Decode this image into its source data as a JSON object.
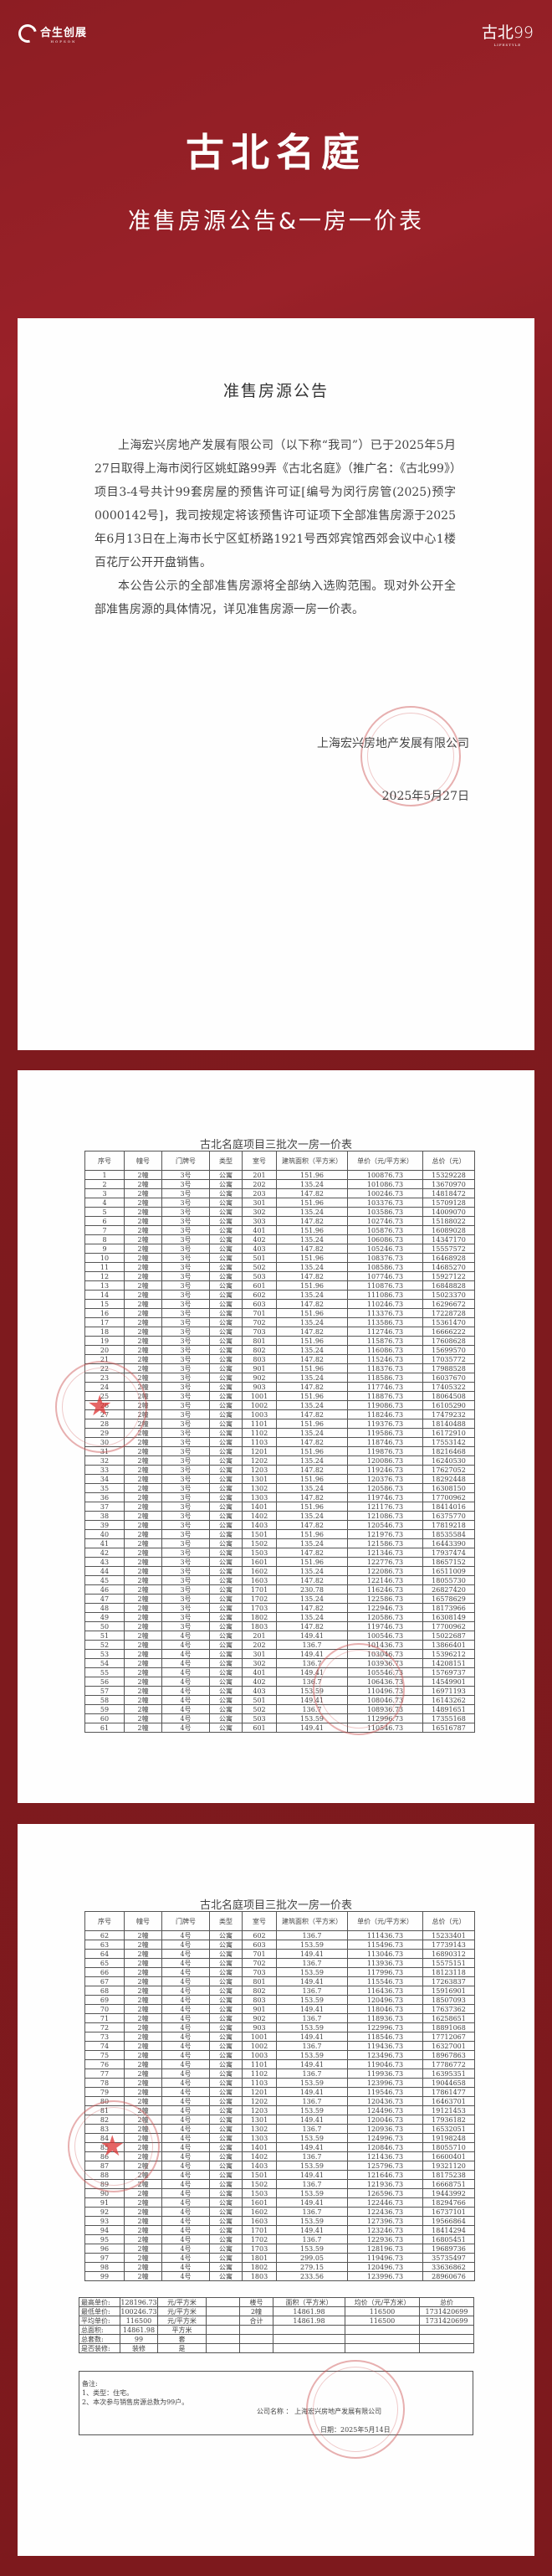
{
  "header": {
    "brand_left": "合生创展",
    "brand_left_en": "HOPSON",
    "brand_right": "古北99",
    "brand_right_en": "LIFESTYLE",
    "title": "古北名庭",
    "subtitle": "准售房源公告&一房一价表"
  },
  "colors": {
    "background": "#7f1a1e",
    "card": "#fefefe",
    "stamp": "#cd5050"
  },
  "notice": {
    "title": "准售房源公告",
    "paragraphs": [
      "上海宏兴房地产发展有限公司（以下称“我司”）已于2025年5月27日取得上海市闵行区姚虹路99弄《古北名庭》（推广名：《古北99》）项目3-4号共计99套房屋的预售许可证[编号为闵行房管(2025)预字0000142号]，我司按规定将该预售许可证项下全部准售房源于2025年6月13日在上海市长宁区虹桥路1921号西郊宾馆西郊会议中心1楼百花厅公开开盘销售。",
      "本公告公示的全部准售房源将全部纳入选购范围。现对外公开全部准售房源的具体情况，详见准售房源一房一价表。"
    ],
    "company": "上海宏兴房地产发展有限公司",
    "date": "2025年5月27日"
  },
  "price_table": {
    "title": "古北名庭项目三批次一房一价表",
    "columns": [
      "序号",
      "幢号",
      "门牌号",
      "类型",
      "室号",
      "建筑面积（平方米）",
      "单价（元/平方米）",
      "总价（元）"
    ],
    "rows": [
      [
        1,
        "2幢",
        "3号",
        "公寓",
        "201",
        "151.96",
        "100876.73",
        "15329228"
      ],
      [
        2,
        "2幢",
        "3号",
        "公寓",
        "202",
        "135.24",
        "101086.73",
        "13670970"
      ],
      [
        3,
        "2幢",
        "3号",
        "公寓",
        "203",
        "147.82",
        "100246.73",
        "14818472"
      ],
      [
        4,
        "2幢",
        "3号",
        "公寓",
        "301",
        "151.96",
        "103376.73",
        "15709128"
      ],
      [
        5,
        "2幢",
        "3号",
        "公寓",
        "302",
        "135.24",
        "103586.73",
        "14009070"
      ],
      [
        6,
        "2幢",
        "3号",
        "公寓",
        "303",
        "147.82",
        "102746.73",
        "15188022"
      ],
      [
        7,
        "2幢",
        "3号",
        "公寓",
        "401",
        "151.96",
        "105876.73",
        "16089028"
      ],
      [
        8,
        "2幢",
        "3号",
        "公寓",
        "402",
        "135.24",
        "106086.73",
        "14347170"
      ],
      [
        9,
        "2幢",
        "3号",
        "公寓",
        "403",
        "147.82",
        "105246.73",
        "15557572"
      ],
      [
        10,
        "2幢",
        "3号",
        "公寓",
        "501",
        "151.96",
        "108376.73",
        "16468928"
      ],
      [
        11,
        "2幢",
        "3号",
        "公寓",
        "502",
        "135.24",
        "108586.73",
        "14685270"
      ],
      [
        12,
        "2幢",
        "3号",
        "公寓",
        "503",
        "147.82",
        "107746.73",
        "15927122"
      ],
      [
        13,
        "2幢",
        "3号",
        "公寓",
        "601",
        "151.96",
        "110876.73",
        "16848828"
      ],
      [
        14,
        "2幢",
        "3号",
        "公寓",
        "602",
        "135.24",
        "111086.73",
        "15023370"
      ],
      [
        15,
        "2幢",
        "3号",
        "公寓",
        "603",
        "147.82",
        "110246.73",
        "16296672"
      ],
      [
        16,
        "2幢",
        "3号",
        "公寓",
        "701",
        "151.96",
        "113376.73",
        "17228728"
      ],
      [
        17,
        "2幢",
        "3号",
        "公寓",
        "702",
        "135.24",
        "113586.73",
        "15361470"
      ],
      [
        18,
        "2幢",
        "3号",
        "公寓",
        "703",
        "147.82",
        "112746.73",
        "16666222"
      ],
      [
        19,
        "2幢",
        "3号",
        "公寓",
        "801",
        "151.96",
        "115876.73",
        "17608628"
      ],
      [
        20,
        "2幢",
        "3号",
        "公寓",
        "802",
        "135.24",
        "116086.73",
        "15699570"
      ],
      [
        21,
        "2幢",
        "3号",
        "公寓",
        "803",
        "147.82",
        "115246.73",
        "17035772"
      ],
      [
        22,
        "2幢",
        "3号",
        "公寓",
        "901",
        "151.96",
        "118376.73",
        "17988528"
      ],
      [
        23,
        "2幢",
        "3号",
        "公寓",
        "902",
        "135.24",
        "118586.73",
        "16037670"
      ],
      [
        24,
        "2幢",
        "3号",
        "公寓",
        "903",
        "147.82",
        "117746.73",
        "17405322"
      ],
      [
        25,
        "2幢",
        "3号",
        "公寓",
        "1001",
        "151.96",
        "118876.73",
        "18064508"
      ],
      [
        26,
        "2幢",
        "3号",
        "公寓",
        "1002",
        "135.24",
        "119086.73",
        "16105290"
      ],
      [
        27,
        "2幢",
        "3号",
        "公寓",
        "1003",
        "147.82",
        "118246.73",
        "17479232"
      ],
      [
        28,
        "2幢",
        "3号",
        "公寓",
        "1101",
        "151.96",
        "119376.73",
        "18140488"
      ],
      [
        29,
        "2幢",
        "3号",
        "公寓",
        "1102",
        "135.24",
        "119586.73",
        "16172910"
      ],
      [
        30,
        "2幢",
        "3号",
        "公寓",
        "1103",
        "147.82",
        "118746.73",
        "17553142"
      ],
      [
        31,
        "2幢",
        "3号",
        "公寓",
        "1201",
        "151.96",
        "119876.73",
        "18216468"
      ],
      [
        32,
        "2幢",
        "3号",
        "公寓",
        "1202",
        "135.24",
        "120086.73",
        "16240530"
      ],
      [
        33,
        "2幢",
        "3号",
        "公寓",
        "1203",
        "147.82",
        "119246.73",
        "17627052"
      ],
      [
        34,
        "2幢",
        "3号",
        "公寓",
        "1301",
        "151.96",
        "120376.73",
        "18292448"
      ],
      [
        35,
        "2幢",
        "3号",
        "公寓",
        "1302",
        "135.24",
        "120586.73",
        "16308150"
      ],
      [
        36,
        "2幢",
        "3号",
        "公寓",
        "1303",
        "147.82",
        "119746.73",
        "17700962"
      ],
      [
        37,
        "2幢",
        "3号",
        "公寓",
        "1401",
        "151.96",
        "121176.73",
        "18414016"
      ],
      [
        38,
        "2幢",
        "3号",
        "公寓",
        "1402",
        "135.24",
        "121086.73",
        "16375770"
      ],
      [
        39,
        "2幢",
        "3号",
        "公寓",
        "1403",
        "147.82",
        "120546.73",
        "17819218"
      ],
      [
        40,
        "2幢",
        "3号",
        "公寓",
        "1501",
        "151.96",
        "121976.73",
        "18535584"
      ],
      [
        41,
        "2幢",
        "3号",
        "公寓",
        "1502",
        "135.24",
        "121586.73",
        "16443390"
      ],
      [
        42,
        "2幢",
        "3号",
        "公寓",
        "1503",
        "147.82",
        "121346.73",
        "17937474"
      ],
      [
        43,
        "2幢",
        "3号",
        "公寓",
        "1601",
        "151.96",
        "122776.73",
        "18657152"
      ],
      [
        44,
        "2幢",
        "3号",
        "公寓",
        "1602",
        "135.24",
        "122086.73",
        "16511009"
      ],
      [
        45,
        "2幢",
        "3号",
        "公寓",
        "1603",
        "147.82",
        "122146.73",
        "18055730"
      ],
      [
        46,
        "2幢",
        "3号",
        "公寓",
        "1701",
        "230.78",
        "116246.73",
        "26827420"
      ],
      [
        47,
        "2幢",
        "3号",
        "公寓",
        "1702",
        "135.24",
        "122586.73",
        "16578629"
      ],
      [
        48,
        "2幢",
        "3号",
        "公寓",
        "1703",
        "147.82",
        "122946.73",
        "18173966"
      ],
      [
        49,
        "2幢",
        "3号",
        "公寓",
        "1802",
        "135.24",
        "120586.73",
        "16308149"
      ],
      [
        50,
        "2幢",
        "3号",
        "公寓",
        "1803",
        "147.82",
        "119746.73",
        "17700962"
      ],
      [
        51,
        "2幢",
        "4号",
        "公寓",
        "201",
        "149.41",
        "100546.73",
        "15022687"
      ],
      [
        52,
        "2幢",
        "4号",
        "公寓",
        "202",
        "136.7",
        "101436.73",
        "13866401"
      ],
      [
        53,
        "2幢",
        "4号",
        "公寓",
        "301",
        "149.41",
        "103046.73",
        "15396212"
      ],
      [
        54,
        "2幢",
        "4号",
        "公寓",
        "302",
        "136.7",
        "103936.73",
        "14208151"
      ],
      [
        55,
        "2幢",
        "4号",
        "公寓",
        "401",
        "149.41",
        "105546.73",
        "15769737"
      ],
      [
        56,
        "2幢",
        "4号",
        "公寓",
        "402",
        "136.7",
        "106436.73",
        "14549901"
      ],
      [
        57,
        "2幢",
        "4号",
        "公寓",
        "403",
        "153.59",
        "110496.73",
        "16971193"
      ],
      [
        58,
        "2幢",
        "4号",
        "公寓",
        "501",
        "149.41",
        "108046.73",
        "16143262"
      ],
      [
        59,
        "2幢",
        "4号",
        "公寓",
        "502",
        "136.7",
        "108936.73",
        "14891651"
      ],
      [
        60,
        "2幢",
        "4号",
        "公寓",
        "503",
        "153.59",
        "112996.73",
        "17355168"
      ],
      [
        61,
        "2幢",
        "4号",
        "公寓",
        "601",
        "149.41",
        "110546.73",
        "16516787"
      ],
      [
        62,
        "2幢",
        "4号",
        "公寓",
        "602",
        "136.7",
        "111436.73",
        "15233401"
      ],
      [
        63,
        "2幢",
        "4号",
        "公寓",
        "603",
        "153.59",
        "115496.73",
        "17739143"
      ],
      [
        64,
        "2幢",
        "4号",
        "公寓",
        "701",
        "149.41",
        "113046.73",
        "16890312"
      ],
      [
        65,
        "2幢",
        "4号",
        "公寓",
        "702",
        "136.7",
        "113936.73",
        "15575151"
      ],
      [
        66,
        "2幢",
        "4号",
        "公寓",
        "703",
        "153.59",
        "117996.73",
        "18123118"
      ],
      [
        67,
        "2幢",
        "4号",
        "公寓",
        "801",
        "149.41",
        "115546.73",
        "17263837"
      ],
      [
        68,
        "2幢",
        "4号",
        "公寓",
        "802",
        "136.7",
        "116436.73",
        "15916901"
      ],
      [
        69,
        "2幢",
        "4号",
        "公寓",
        "803",
        "153.59",
        "120496.73",
        "18507093"
      ],
      [
        70,
        "2幢",
        "4号",
        "公寓",
        "901",
        "149.41",
        "118046.73",
        "17637362"
      ],
      [
        71,
        "2幢",
        "4号",
        "公寓",
        "902",
        "136.7",
        "118936.73",
        "16258651"
      ],
      [
        72,
        "2幢",
        "4号",
        "公寓",
        "903",
        "153.59",
        "122996.73",
        "18891068"
      ],
      [
        73,
        "2幢",
        "4号",
        "公寓",
        "1001",
        "149.41",
        "118546.73",
        "17712067"
      ],
      [
        74,
        "2幢",
        "4号",
        "公寓",
        "1002",
        "136.7",
        "119436.73",
        "16327001"
      ],
      [
        75,
        "2幢",
        "4号",
        "公寓",
        "1003",
        "153.59",
        "123496.73",
        "18967863"
      ],
      [
        76,
        "2幢",
        "4号",
        "公寓",
        "1101",
        "149.41",
        "119046.73",
        "17786772"
      ],
      [
        77,
        "2幢",
        "4号",
        "公寓",
        "1102",
        "136.7",
        "119936.73",
        "16395351"
      ],
      [
        78,
        "2幢",
        "4号",
        "公寓",
        "1103",
        "153.59",
        "123996.73",
        "19044658"
      ],
      [
        79,
        "2幢",
        "4号",
        "公寓",
        "1201",
        "149.41",
        "119546.73",
        "17861477"
      ],
      [
        80,
        "2幢",
        "4号",
        "公寓",
        "1202",
        "136.7",
        "120436.73",
        "16463701"
      ],
      [
        81,
        "2幢",
        "4号",
        "公寓",
        "1203",
        "153.59",
        "124496.73",
        "19121453"
      ],
      [
        82,
        "2幢",
        "4号",
        "公寓",
        "1301",
        "149.41",
        "120046.73",
        "17936182"
      ],
      [
        83,
        "2幢",
        "4号",
        "公寓",
        "1302",
        "136.7",
        "120936.73",
        "16532051"
      ],
      [
        84,
        "2幢",
        "4号",
        "公寓",
        "1303",
        "153.59",
        "124996.73",
        "19198248"
      ],
      [
        85,
        "2幢",
        "4号",
        "公寓",
        "1401",
        "149.41",
        "120846.73",
        "18055710"
      ],
      [
        86,
        "2幢",
        "4号",
        "公寓",
        "1402",
        "136.7",
        "121436.73",
        "16600401"
      ],
      [
        87,
        "2幢",
        "4号",
        "公寓",
        "1403",
        "153.59",
        "125796.73",
        "19321120"
      ],
      [
        88,
        "2幢",
        "4号",
        "公寓",
        "1501",
        "149.41",
        "121646.73",
        "18175238"
      ],
      [
        89,
        "2幢",
        "4号",
        "公寓",
        "1502",
        "136.7",
        "121936.73",
        "16668751"
      ],
      [
        90,
        "2幢",
        "4号",
        "公寓",
        "1503",
        "153.59",
        "126596.73",
        "19443992"
      ],
      [
        91,
        "2幢",
        "4号",
        "公寓",
        "1601",
        "149.41",
        "122446.73",
        "18294766"
      ],
      [
        92,
        "2幢",
        "4号",
        "公寓",
        "1602",
        "136.7",
        "122436.73",
        "16737101"
      ],
      [
        93,
        "2幢",
        "4号",
        "公寓",
        "1603",
        "153.59",
        "127396.73",
        "19566864"
      ],
      [
        94,
        "2幢",
        "4号",
        "公寓",
        "1701",
        "149.41",
        "123246.73",
        "18414294"
      ],
      [
        95,
        "2幢",
        "4号",
        "公寓",
        "1702",
        "136.7",
        "122936.73",
        "16805451"
      ],
      [
        96,
        "2幢",
        "4号",
        "公寓",
        "1703",
        "153.59",
        "128196.73",
        "19689736"
      ],
      [
        97,
        "2幢",
        "4号",
        "公寓",
        "1801",
        "299.05",
        "119496.73",
        "35735497"
      ],
      [
        98,
        "2幢",
        "4号",
        "公寓",
        "1802",
        "279.15",
        "120496.73",
        "33636862"
      ],
      [
        99,
        "2幢",
        "4号",
        "公寓",
        "1803",
        "233.56",
        "123996.73",
        "28960676"
      ]
    ]
  },
  "summary": {
    "rows": [
      [
        "最高单价:",
        "128196.73",
        "元/平方米",
        "",
        "楼号",
        "面积（平方米）",
        "均价（元/平方米）",
        "总价"
      ],
      [
        "最低单价:",
        "100246.73",
        "元/平方米",
        "",
        "2幢",
        "14861.98",
        "116500",
        "1731420699"
      ],
      [
        "平均单价:",
        "116500",
        "元/平方米",
        "",
        "合计",
        "14861.98",
        "116500",
        "1731420699"
      ],
      [
        "总面积:",
        "14861.98",
        "平方米",
        "",
        "",
        "",
        "",
        ""
      ],
      [
        "总套数:",
        "99",
        "套",
        "",
        "",
        "",
        "",
        ""
      ],
      [
        "是否装修:",
        "装修",
        "是",
        "",
        "",
        "",
        "",
        ""
      ]
    ]
  },
  "notes": {
    "label": "备注:",
    "items": [
      "1、类型：住宅。",
      "2、本次参与销售房源总数为99户。"
    ],
    "company": "公司名称 ： 上海宏兴房地产发展有限公司",
    "date": "日期：2025年5月14日"
  }
}
